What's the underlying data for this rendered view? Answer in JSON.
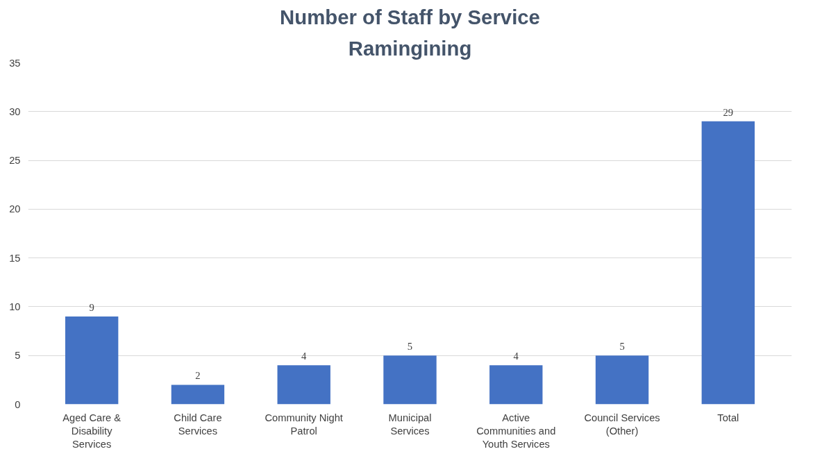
{
  "chart_data": {
    "type": "bar",
    "title": "Number of Staff by Service",
    "subtitle": "Ramingining",
    "categories": [
      "Aged Care & Disability Services",
      "Child Care Services",
      "Community Night Patrol",
      "Municipal Services",
      "Active Communities and Youth Services",
      "Council Services (Other)",
      "Total"
    ],
    "values": [
      9,
      2,
      4,
      5,
      4,
      5,
      29
    ],
    "color": "#4472c4",
    "ylim": [
      0,
      35
    ],
    "yticks": [
      0,
      5,
      10,
      15,
      20,
      25,
      30,
      35
    ],
    "grid": "y",
    "data_labels": true
  }
}
